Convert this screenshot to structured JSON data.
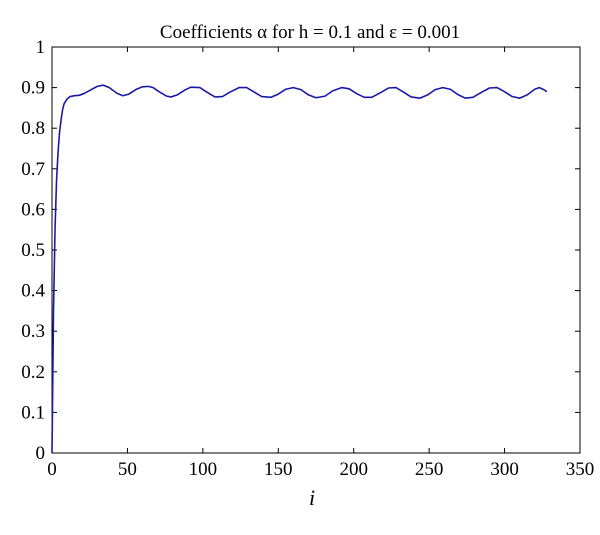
{
  "chart_data": {
    "type": "line",
    "title": "Coefficients α for h = 0.1 and ε = 0.001",
    "xlabel": "i",
    "ylabel": "",
    "xlim": [
      0,
      350
    ],
    "ylim": [
      0,
      1
    ],
    "xticks": [
      0,
      50,
      100,
      150,
      200,
      250,
      300,
      350
    ],
    "yticks": [
      0,
      0.1,
      0.2,
      0.3,
      0.4,
      0.5,
      0.6,
      0.7,
      0.8,
      0.9,
      1
    ],
    "xtick_labels": [
      "0",
      "50",
      "100",
      "150",
      "200",
      "250",
      "300",
      "350"
    ],
    "ytick_labels": [
      "0",
      "0.1",
      "0.2",
      "0.3",
      "0.4",
      "0.5",
      "0.6",
      "0.7",
      "0.8",
      "0.9",
      "1"
    ],
    "grid": false,
    "line_color": "#1a1aa8",
    "series": [
      {
        "values": [
          [
            0,
            0.0
          ],
          [
            1,
            0.35
          ],
          [
            2,
            0.55
          ],
          [
            3,
            0.67
          ],
          [
            4,
            0.74
          ],
          [
            5,
            0.79
          ],
          [
            6,
            0.82
          ],
          [
            7,
            0.845
          ],
          [
            8,
            0.86
          ],
          [
            10,
            0.872
          ],
          [
            12,
            0.878
          ],
          [
            15,
            0.88
          ],
          [
            18,
            0.881
          ],
          [
            21,
            0.885
          ],
          [
            25,
            0.893
          ],
          [
            30,
            0.903
          ],
          [
            34,
            0.906
          ],
          [
            38,
            0.9
          ],
          [
            43,
            0.886
          ],
          [
            47,
            0.88
          ],
          [
            51,
            0.884
          ],
          [
            56,
            0.896
          ],
          [
            60,
            0.902
          ],
          [
            64,
            0.903
          ],
          [
            67,
            0.9
          ],
          [
            71,
            0.89
          ],
          [
            76,
            0.879
          ],
          [
            79,
            0.877
          ],
          [
            83,
            0.882
          ],
          [
            88,
            0.894
          ],
          [
            92,
            0.901
          ],
          [
            98,
            0.9
          ],
          [
            103,
            0.888
          ],
          [
            108,
            0.877
          ],
          [
            113,
            0.878
          ],
          [
            118,
            0.889
          ],
          [
            124,
            0.9
          ],
          [
            129,
            0.9
          ],
          [
            134,
            0.889
          ],
          [
            139,
            0.878
          ],
          [
            145,
            0.876
          ],
          [
            150,
            0.884
          ],
          [
            155,
            0.896
          ],
          [
            160,
            0.9
          ],
          [
            165,
            0.895
          ],
          [
            170,
            0.882
          ],
          [
            175,
            0.875
          ],
          [
            181,
            0.879
          ],
          [
            186,
            0.892
          ],
          [
            192,
            0.9
          ],
          [
            197,
            0.897
          ],
          [
            202,
            0.885
          ],
          [
            207,
            0.876
          ],
          [
            212,
            0.876
          ],
          [
            218,
            0.888
          ],
          [
            223,
            0.899
          ],
          [
            228,
            0.9
          ],
          [
            233,
            0.889
          ],
          [
            238,
            0.877
          ],
          [
            244,
            0.874
          ],
          [
            249,
            0.882
          ],
          [
            254,
            0.895
          ],
          [
            259,
            0.9
          ],
          [
            264,
            0.896
          ],
          [
            269,
            0.883
          ],
          [
            274,
            0.874
          ],
          [
            279,
            0.876
          ],
          [
            285,
            0.889
          ],
          [
            290,
            0.899
          ],
          [
            295,
            0.9
          ],
          [
            300,
            0.89
          ],
          [
            305,
            0.878
          ],
          [
            310,
            0.874
          ],
          [
            315,
            0.882
          ],
          [
            320,
            0.896
          ],
          [
            323,
            0.9
          ],
          [
            326,
            0.895
          ],
          [
            328,
            0.89
          ]
        ]
      }
    ]
  }
}
